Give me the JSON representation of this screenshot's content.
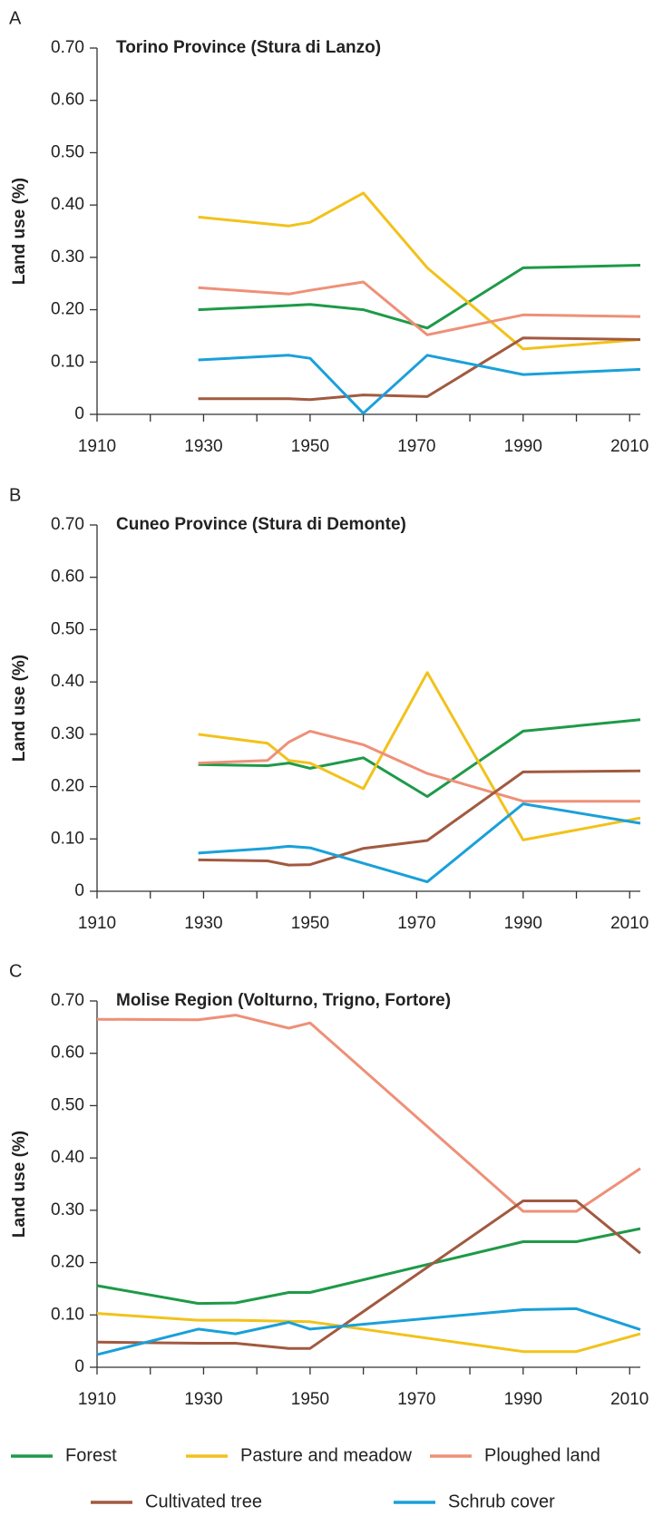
{
  "chart_data": [
    {
      "type": "line",
      "panel_label": "A",
      "title": "Torino Province (Stura di Lanzo)",
      "y_label": "Land use (%)",
      "xlim": [
        1910,
        2012
      ],
      "xticks": [
        1910,
        1930,
        1950,
        1970,
        1990,
        2010
      ],
      "xminorticks": [
        1920,
        1940,
        1960,
        1980,
        2000
      ],
      "ylim": [
        0,
        0.7
      ],
      "yticks": [
        0,
        {
          "value": 0.1,
          "label": "0.10"
        },
        {
          "value": 0.2,
          "label": "0.20"
        },
        {
          "value": 0.3,
          "label": "0.30"
        },
        {
          "value": 0.4,
          "label": "0.40"
        },
        {
          "value": 0.5,
          "label": "0.50"
        },
        {
          "value": 0.6,
          "label": "0.60"
        },
        {
          "value": 0.7,
          "label": "0.70"
        }
      ],
      "series": [
        {
          "name": "Forest",
          "color": "#1e9a48",
          "x": [
            1929,
            1946,
            1950,
            1960,
            1972,
            1990,
            2012
          ],
          "values": [
            0.2,
            0.208,
            0.21,
            0.2,
            0.165,
            0.28,
            0.285
          ]
        },
        {
          "name": "Pasture and meadow",
          "color": "#f2c21b",
          "x": [
            1929,
            1946,
            1950,
            1960,
            1972,
            1990,
            2012
          ],
          "values": [
            0.377,
            0.36,
            0.367,
            0.423,
            0.28,
            0.125,
            0.143
          ]
        },
        {
          "name": "Ploughed land",
          "color": "#ee9078",
          "x": [
            1929,
            1946,
            1950,
            1960,
            1972,
            1990,
            2012
          ],
          "values": [
            0.242,
            0.23,
            0.237,
            0.253,
            0.152,
            0.19,
            0.187
          ]
        },
        {
          "name": "Cultivated tree",
          "color": "#a15a40",
          "x": [
            1929,
            1946,
            1950,
            1960,
            1972,
            1990,
            2012
          ],
          "values": [
            0.03,
            0.03,
            0.028,
            0.037,
            0.034,
            0.146,
            0.143
          ]
        },
        {
          "name": "Schrub cover",
          "color": "#1aa0d9",
          "x": [
            1929,
            1946,
            1950,
            1960,
            1972,
            1990,
            2012
          ],
          "values": [
            0.104,
            0.113,
            0.107,
            0.002,
            0.113,
            0.076,
            0.086
          ]
        }
      ]
    },
    {
      "type": "line",
      "panel_label": "B",
      "title": "Cuneo Province (Stura di Demonte)",
      "y_label": "Land use (%)",
      "xlim": [
        1910,
        2012
      ],
      "xticks": [
        1910,
        1930,
        1950,
        1970,
        1990,
        2010
      ],
      "xminorticks": [
        1920,
        1940,
        1960,
        1980,
        2000
      ],
      "ylim": [
        0,
        0.7
      ],
      "yticks": [
        0,
        {
          "value": 0.1,
          "label": "0.10"
        },
        {
          "value": 0.2,
          "label": "0.20"
        },
        {
          "value": 0.3,
          "label": "0.30"
        },
        {
          "value": 0.4,
          "label": "0.40"
        },
        {
          "value": 0.5,
          "label": "0.50"
        },
        {
          "value": 0.6,
          "label": "0.60"
        },
        {
          "value": 0.7,
          "label": "0.70"
        }
      ],
      "series": [
        {
          "name": "Forest",
          "color": "#1e9a48",
          "x": [
            1929,
            1942,
            1946,
            1950,
            1960,
            1972,
            1990,
            2012
          ],
          "values": [
            0.242,
            0.24,
            0.245,
            0.235,
            0.255,
            0.181,
            0.306,
            0.328
          ]
        },
        {
          "name": "Pasture and meadow",
          "color": "#f2c21b",
          "x": [
            1929,
            1942,
            1946,
            1950,
            1960,
            1972,
            1990,
            2012
          ],
          "values": [
            0.3,
            0.283,
            0.25,
            0.245,
            0.196,
            0.418,
            0.098,
            0.14
          ]
        },
        {
          "name": "Ploughed land",
          "color": "#ee9078",
          "x": [
            1929,
            1942,
            1946,
            1950,
            1960,
            1972,
            1990,
            2012
          ],
          "values": [
            0.245,
            0.25,
            0.285,
            0.306,
            0.28,
            0.225,
            0.172,
            0.172
          ]
        },
        {
          "name": "Cultivated tree",
          "color": "#a15a40",
          "x": [
            1929,
            1942,
            1946,
            1950,
            1960,
            1972,
            1990,
            2012
          ],
          "values": [
            0.06,
            0.058,
            0.05,
            0.051,
            0.082,
            0.097,
            0.228,
            0.23
          ]
        },
        {
          "name": "Schrub cover",
          "color": "#1aa0d9",
          "x": [
            1929,
            1942,
            1946,
            1950,
            1972,
            1990,
            2012
          ],
          "values": [
            0.073,
            0.082,
            0.086,
            0.083,
            0.018,
            0.167,
            0.13
          ]
        }
      ]
    },
    {
      "type": "line",
      "panel_label": "C",
      "title": "Molise Region (Volturno, Trigno, Fortore)",
      "y_label": "Land use (%)",
      "xlim": [
        1910,
        2012
      ],
      "xticks": [
        1910,
        1930,
        1950,
        1970,
        1990,
        2010
      ],
      "xminorticks": [
        1920,
        1940,
        1960,
        1980,
        2000
      ],
      "ylim": [
        0,
        0.7
      ],
      "yticks": [
        0,
        {
          "value": 0.1,
          "label": "0.10"
        },
        {
          "value": 0.2,
          "label": "0.20"
        },
        {
          "value": 0.3,
          "label": "0.30"
        },
        {
          "value": 0.4,
          "label": "0.40"
        },
        {
          "value": 0.5,
          "label": "0.50"
        },
        {
          "value": 0.6,
          "label": "0.60"
        },
        {
          "value": 0.7,
          "label": "0.70"
        }
      ],
      "series": [
        {
          "name": "Forest",
          "color": "#1e9a48",
          "x": [
            1910,
            1929,
            1936,
            1946,
            1950,
            1990,
            2000,
            2012
          ],
          "values": [
            0.156,
            0.122,
            0.123,
            0.143,
            0.143,
            0.24,
            0.24,
            0.265
          ]
        },
        {
          "name": "Pasture and meadow",
          "color": "#f2c21b",
          "x": [
            1910,
            1929,
            1936,
            1950,
            1990,
            2000,
            2012
          ],
          "values": [
            0.103,
            0.09,
            0.09,
            0.087,
            0.03,
            0.03,
            0.064
          ]
        },
        {
          "name": "Ploughed land",
          "color": "#ee9078",
          "x": [
            1910,
            1929,
            1936,
            1946,
            1950,
            1990,
            2000,
            2012
          ],
          "values": [
            0.665,
            0.664,
            0.673,
            0.648,
            0.658,
            0.298,
            0.298,
            0.38
          ]
        },
        {
          "name": "Cultivated tree",
          "color": "#a15a40",
          "x": [
            1910,
            1929,
            1936,
            1946,
            1950,
            1990,
            2000,
            2012
          ],
          "values": [
            0.048,
            0.046,
            0.046,
            0.036,
            0.036,
            0.318,
            0.318,
            0.218
          ]
        },
        {
          "name": "Schrub cover",
          "color": "#1aa0d9",
          "x": [
            1910,
            1929,
            1936,
            1946,
            1950,
            1990,
            2000,
            2012
          ],
          "values": [
            0.024,
            0.073,
            0.064,
            0.086,
            0.073,
            0.11,
            0.112,
            0.072
          ]
        }
      ]
    }
  ]
}
